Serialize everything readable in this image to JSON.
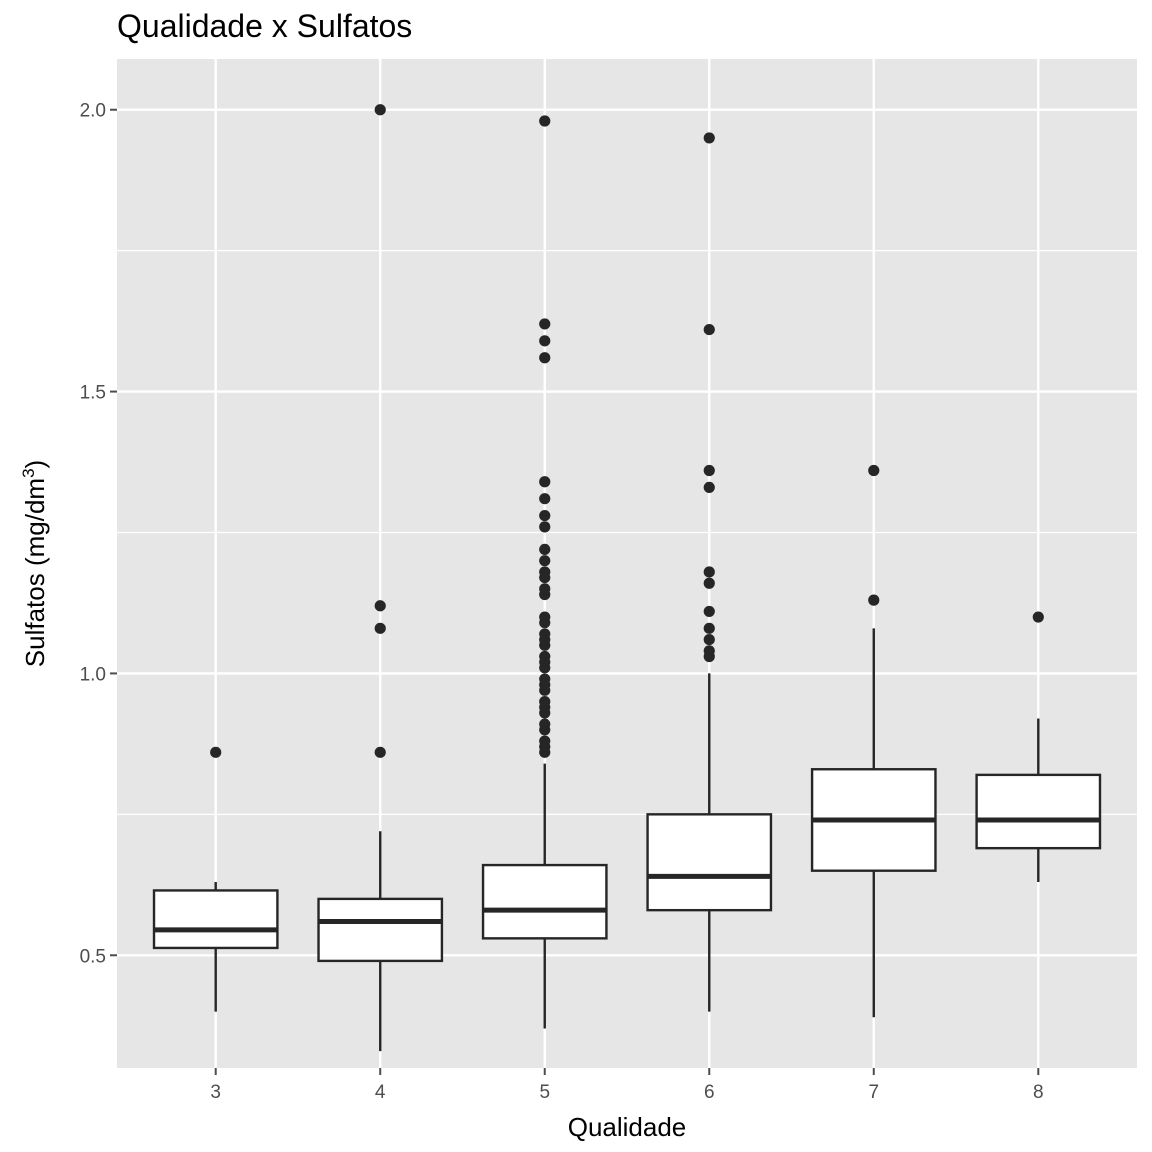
{
  "title": "Qualidade x Sulfatos",
  "chart_data": {
    "type": "boxplot",
    "title": "Qualidade x Sulfatos",
    "xlabel": "Qualidade",
    "ylabel": "Sulfatos (mg/dm",
    "ylabel_superscript": "3",
    "ylabel_suffix": ")",
    "ylim": [
      0.3,
      2.09
    ],
    "yticks": [
      0.5,
      1.0,
      1.5,
      2.0
    ],
    "ytick_labels": [
      "0.5",
      "1.0",
      "1.5",
      "2.0"
    ],
    "grid": true,
    "background": "#e6e6e6",
    "categories": [
      "3",
      "4",
      "5",
      "6",
      "7",
      "8"
    ],
    "boxes": [
      {
        "category": "3",
        "whisker_low": 0.4,
        "q1": 0.513,
        "median": 0.545,
        "q3": 0.615,
        "whisker_high": 0.63,
        "outliers": [
          0.86
        ]
      },
      {
        "category": "4",
        "whisker_low": 0.33,
        "q1": 0.49,
        "median": 0.56,
        "q3": 0.6,
        "whisker_high": 0.72,
        "outliers": [
          0.86,
          1.08,
          1.12,
          2.0
        ]
      },
      {
        "category": "5",
        "whisker_low": 0.37,
        "q1": 0.53,
        "median": 0.58,
        "q3": 0.66,
        "whisker_high": 0.84,
        "outliers": [
          0.86,
          0.87,
          0.88,
          0.9,
          0.91,
          0.93,
          0.94,
          0.95,
          0.97,
          0.98,
          0.99,
          1.01,
          1.02,
          1.03,
          1.05,
          1.06,
          1.07,
          1.09,
          1.1,
          1.14,
          1.15,
          1.17,
          1.18,
          1.2,
          1.22,
          1.26,
          1.28,
          1.31,
          1.34,
          1.56,
          1.59,
          1.62,
          1.98
        ]
      },
      {
        "category": "6",
        "whisker_low": 0.4,
        "q1": 0.58,
        "median": 0.64,
        "q3": 0.75,
        "whisker_high": 1.0,
        "outliers": [
          1.03,
          1.04,
          1.06,
          1.08,
          1.11,
          1.16,
          1.18,
          1.33,
          1.36,
          1.61,
          1.95
        ]
      },
      {
        "category": "7",
        "whisker_low": 0.39,
        "q1": 0.65,
        "median": 0.74,
        "q3": 0.83,
        "whisker_high": 1.08,
        "outliers": [
          1.13,
          1.36
        ]
      },
      {
        "category": "8",
        "whisker_low": 0.63,
        "q1": 0.69,
        "median": 0.74,
        "q3": 0.82,
        "whisker_high": 0.92,
        "outliers": [
          1.1
        ]
      }
    ],
    "colors": {
      "panel": "#e6e6e6",
      "grid": "#ffffff",
      "box_fill": "#ffffff",
      "box_line": "#262626",
      "point": "#262626",
      "tick": "#4d4d4d"
    }
  }
}
